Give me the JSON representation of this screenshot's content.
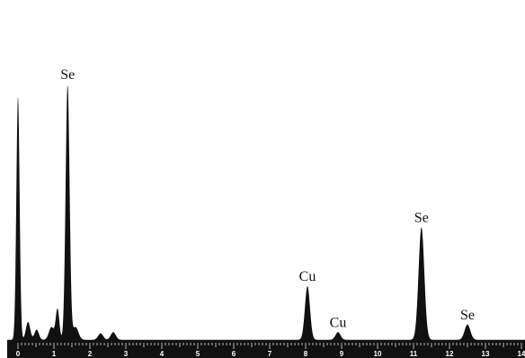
{
  "chart_data": {
    "type": "area",
    "title": "",
    "xlabel": "",
    "ylabel": "",
    "xlim": [
      -0.3,
      14.1
    ],
    "ylim": [
      0,
      1
    ],
    "grid": false,
    "legend": "none",
    "colors": {
      "spectrum": "#111111",
      "axis_bar": "#111111",
      "tick_label": "#ffffff",
      "background": "#ffffff"
    },
    "x_ticks": [
      "0",
      "1",
      "2",
      "3",
      "4",
      "5",
      "6",
      "7",
      "8",
      "9",
      "10",
      "11",
      "12",
      "13",
      "14"
    ],
    "peaks": [
      {
        "x": 0.0,
        "y": 0.95,
        "w": 0.045,
        "label": ""
      },
      {
        "x": 0.28,
        "y": 0.07,
        "w": 0.06,
        "label": ""
      },
      {
        "x": 0.52,
        "y": 0.04,
        "w": 0.06,
        "label": ""
      },
      {
        "x": 0.93,
        "y": 0.05,
        "w": 0.07,
        "label": ""
      },
      {
        "x": 1.1,
        "y": 0.12,
        "w": 0.05,
        "label": ""
      },
      {
        "x": 1.38,
        "y": 1.0,
        "w": 0.055,
        "label": "Se"
      },
      {
        "x": 1.6,
        "y": 0.05,
        "w": 0.08,
        "label": ""
      },
      {
        "x": 2.3,
        "y": 0.025,
        "w": 0.07,
        "label": ""
      },
      {
        "x": 2.65,
        "y": 0.03,
        "w": 0.07,
        "label": ""
      },
      {
        "x": 8.05,
        "y": 0.21,
        "w": 0.07,
        "label": "Cu"
      },
      {
        "x": 8.9,
        "y": 0.03,
        "w": 0.07,
        "label": "Cu"
      },
      {
        "x": 11.22,
        "y": 0.44,
        "w": 0.08,
        "label": "Se"
      },
      {
        "x": 12.5,
        "y": 0.06,
        "w": 0.08,
        "label": "Se"
      }
    ],
    "baseline": 0.008
  }
}
